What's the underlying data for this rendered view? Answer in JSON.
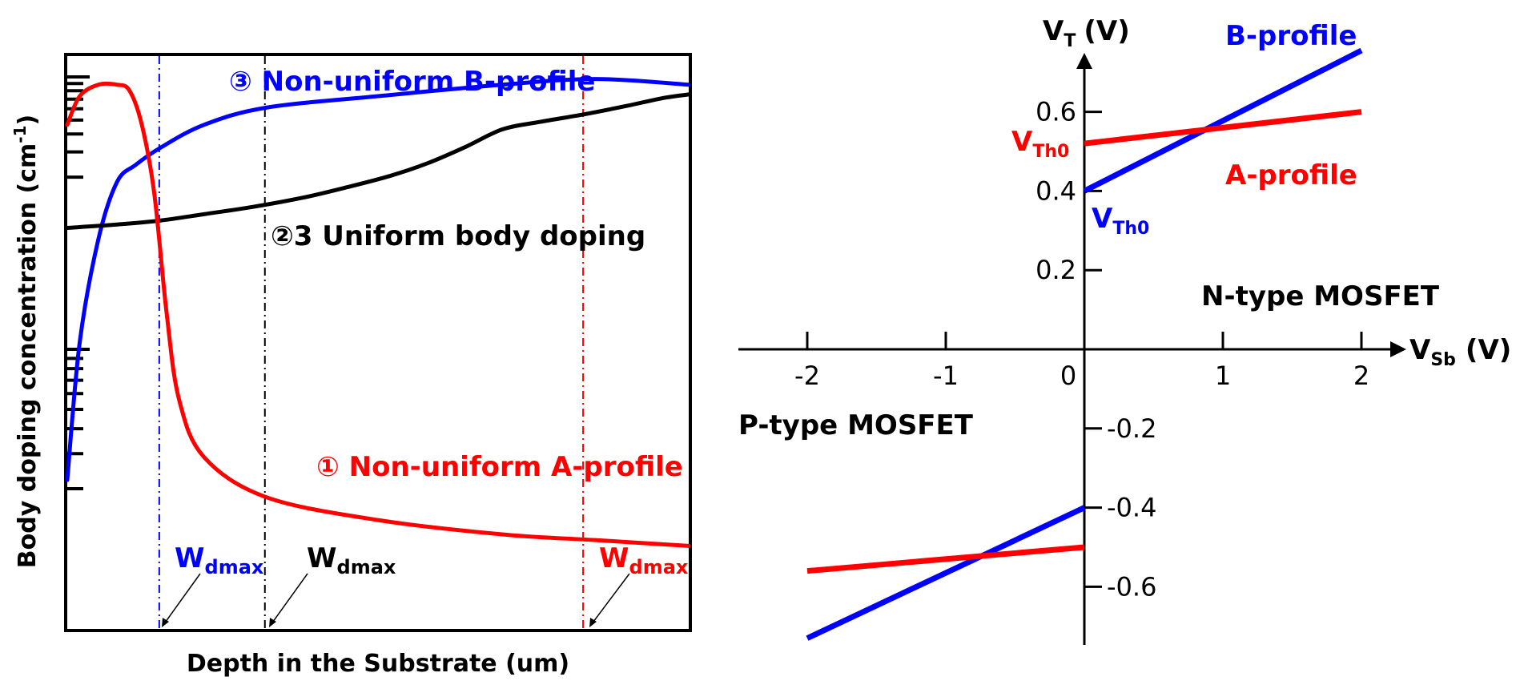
{
  "chart_data": [
    {
      "type": "line",
      "xlabel": "Depth in the Substrate (um)",
      "ylabel": "Body doping concentration (cm",
      "ylabel_sup": "-1",
      "ylabel_close": ")",
      "x_range": [
        0,
        1
      ],
      "y_range": [
        0,
        1
      ],
      "series": [
        {
          "name": "③ Non-uniform B-profile",
          "color": "#0000ff",
          "x": [
            0.0,
            0.02,
            0.05,
            0.08,
            0.11,
            0.15,
            0.22,
            0.32,
            0.5,
            0.7,
            0.85,
            1.0
          ],
          "y": [
            0.26,
            0.5,
            0.68,
            0.78,
            0.81,
            0.84,
            0.88,
            0.91,
            0.93,
            0.95,
            0.96,
            0.95
          ]
        },
        {
          "name": "②3 Uniform body doping",
          "color": "#000000",
          "x": [
            0.0,
            0.15,
            0.3,
            0.45,
            0.55,
            0.62,
            0.7,
            0.78,
            0.85,
            0.93,
            1.0
          ],
          "y": [
            0.7,
            0.71,
            0.74,
            0.77,
            0.8,
            0.83,
            0.86,
            0.89,
            0.9,
            0.92,
            0.94
          ],
          "x_fit": [
            0.0,
            0.08,
            0.15,
            0.22,
            0.3,
            0.38,
            0.45,
            0.52,
            0.58,
            0.64,
            0.7,
            0.76,
            0.83,
            0.9,
            0.96,
            1.0
          ],
          "y_fit": [
            0.7,
            0.706,
            0.713,
            0.724,
            0.737,
            0.753,
            0.771,
            0.791,
            0.813,
            0.841,
            0.872,
            0.885,
            0.898,
            0.913,
            0.927,
            0.933
          ]
        },
        {
          "name": "① Non-uniform A-profile",
          "color": "#ff0000",
          "x": [
            0.0,
            0.02,
            0.05,
            0.08,
            0.1,
            0.12,
            0.14,
            0.16,
            0.18,
            0.22,
            0.32,
            0.5,
            0.7,
            0.85,
            1.0
          ],
          "y": [
            0.88,
            0.93,
            0.95,
            0.95,
            0.94,
            0.88,
            0.76,
            0.55,
            0.4,
            0.3,
            0.23,
            0.19,
            0.165,
            0.155,
            0.145
          ]
        }
      ],
      "vlines": [
        {
          "x": 0.148,
          "color": "#0000ff",
          "label_main": "W",
          "label_sub": "dmax"
        },
        {
          "x": 0.318,
          "color": "#000000",
          "label_main": "W",
          "label_sub": "dmax"
        },
        {
          "x": 0.83,
          "color": "#ff0000",
          "label_main": "W",
          "label_sub": "dmax"
        }
      ]
    },
    {
      "type": "line",
      "xlabel": "V",
      "xlabel_sub": "Sb",
      "xlabel_unit": "(V)",
      "ylabel": "V",
      "ylabel_sub": "T",
      "ylabel_unit": "(V)",
      "xlim": [
        -2.5,
        2.3
      ],
      "ylim": [
        -0.73,
        0.78
      ],
      "x_ticks": [
        -2,
        -1,
        0,
        1,
        2
      ],
      "x_tick_labels": [
        "-2",
        "-1",
        "0",
        "1",
        "2"
      ],
      "y_ticks_pos": [
        0.2,
        0.4,
        0.6
      ],
      "y_tick_labels_pos": [
        "0.2",
        "0.4",
        "0.6"
      ],
      "y_ticks_neg": [
        -0.2,
        -0.4,
        -0.6
      ],
      "y_tick_labels_neg": [
        "-0.2",
        "-0.4",
        "-0.6"
      ],
      "series": [
        {
          "name": "B-profile",
          "color": "#0000ff",
          "segment": "n",
          "x": [
            0,
            2.0
          ],
          "y": [
            0.4,
            0.755
          ]
        },
        {
          "name": "A-profile",
          "color": "#ff0000",
          "segment": "n",
          "x": [
            0,
            2.0
          ],
          "y": [
            0.52,
            0.6
          ]
        },
        {
          "name": "",
          "color": "#0000ff",
          "segment": "p",
          "x": [
            -2.0,
            0
          ],
          "y": [
            -0.73,
            -0.4
          ]
        },
        {
          "name": "",
          "color": "#ff0000",
          "segment": "p",
          "x": [
            -2.0,
            0
          ],
          "y": [
            -0.56,
            -0.5
          ]
        }
      ],
      "annotations": {
        "vth0_red_main": "V",
        "vth0_red_sub": "Th0",
        "vth0_blue_main": "V",
        "vth0_blue_sub": "Th0",
        "n_type": "N-type MOSFET",
        "p_type": "P-type MOSFET"
      }
    }
  ]
}
